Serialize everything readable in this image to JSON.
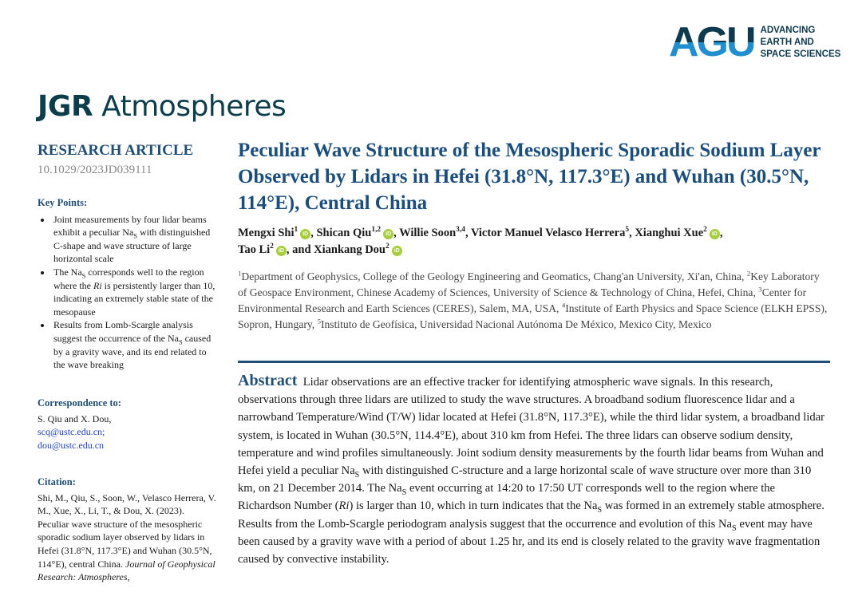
{
  "logo": {
    "mark": "AGU",
    "tagline": [
      "ADVANCING",
      "EARTH AND",
      "SPACE SCIENCES"
    ],
    "colors": {
      "dark": "#0d3a4f",
      "blue": "#1f8fd1"
    }
  },
  "journal": {
    "bold": "JGR",
    "rest": " Atmospheres"
  },
  "article_type": "RESEARCH ARTICLE",
  "doi": "10.1029/2023JD039111",
  "key_points": {
    "heading": "Key Points:",
    "items": [
      "Joint measurements by four lidar beams exhibit a peculiar Na_S with distinguished C-shape and wave structure of large horizontal scale",
      "The Na_S corresponds well to the region where the Ri is persistently larger than 10, indicating an extremely stable state of the mesopause",
      "Results from Lomb-Scargle analysis suggest the occurrence of the Na_S caused by a gravity wave, and its end related to the wave breaking"
    ]
  },
  "correspondence": {
    "heading": "Correspondence to:",
    "names": "S. Qiu and X. Dou,",
    "emails": [
      "scq@ustc.edu.cn;",
      "dou@ustc.edu.cn"
    ]
  },
  "citation": {
    "heading": "Citation:",
    "text": "Shi, M., Qiu, S., Soon, W., Velasco Herrera, V. M., Xue, X., Li, T., & Dou, X. (2023). Peculiar wave structure of the mesospheric sporadic sodium layer observed by lidars in Hefei (31.8°N, 117.3°E) and Wuhan (30.5°N, 114°E), central China. ",
    "journal": "Journal of Geophysical Research: Atmospheres,"
  },
  "title": "Peculiar Wave Structure of the Mesospheric Sporadic Sodium Layer Observed by Lidars in Hefei (31.8°N, 117.3°E) and Wuhan (30.5°N, 114°E), Central China",
  "authors": [
    {
      "name": "Mengxi Shi",
      "aff": "1",
      "orcid": true
    },
    {
      "name": "Shican Qiu",
      "aff": "1,2",
      "orcid": true
    },
    {
      "name": "Willie Soon",
      "aff": "3,4",
      "orcid": false
    },
    {
      "name": "Victor Manuel Velasco Herrera",
      "aff": "5",
      "orcid": false
    },
    {
      "name": "Xianghui Xue",
      "aff": "2",
      "orcid": true
    },
    {
      "name": "Tao Li",
      "aff": "2",
      "orcid": true
    },
    {
      "name": "Xiankang Dou",
      "aff": "2",
      "orcid": true
    }
  ],
  "orcid_label": "iD",
  "affiliations": [
    {
      "n": "1",
      "text": "Department of Geophysics, College of the Geology Engineering and Geomatics, Chang'an University, Xi'an, China, "
    },
    {
      "n": "2",
      "text": "Key Laboratory of Geospace Environment, Chinese Academy of Sciences, University of Science & Technology of China, Hefei, China, "
    },
    {
      "n": "3",
      "text": "Center for Environmental Research and Earth Sciences (CERES), Salem, MA, USA, "
    },
    {
      "n": "4",
      "text": "Institute of Earth Physics and Space Science (ELKH EPSS), Sopron, Hungary, "
    },
    {
      "n": "5",
      "text": "Instituto de Geofísica, Universidad Nacional Autónoma De México, Mexico City, Mexico"
    }
  ],
  "abstract": {
    "heading": "Abstract",
    "text": "Lidar observations are an effective tracker for identifying atmospheric wave signals. In this research, observations through three lidars are utilized to study the wave structures. A broadband sodium fluorescence lidar and a narrowband Temperature/Wind (T/W) lidar located at Hefei (31.8°N, 117.3°E), while the third lidar system, a broadband lidar system, is located in Wuhan (30.5°N, 114.4°E), about 310 km from Hefei. The three lidars can observe sodium density, temperature and wind profiles simultaneously. Joint sodium density measurements by the fourth lidar beams from Wuhan and Hefei yield a peculiar Na_S with distinguished C-structure and a large horizontal scale of wave structure over more than 310 km, on 21 December 2014. The Na_S event occurring at 14:20 to 17:50 UT corresponds well to the region where the Richardson Number (Ri) is larger than 10, which in turn indicates that the Na_S was formed in an extremely stable atmosphere. Results from the Lomb-Scargle periodogram analysis suggest that the occurrence and evolution of this Na_S event may have been caused by a gravity wave with a period of about 1.25 hr, and its end is closely related to the gravity wave fragmentation caused by convective instability."
  }
}
